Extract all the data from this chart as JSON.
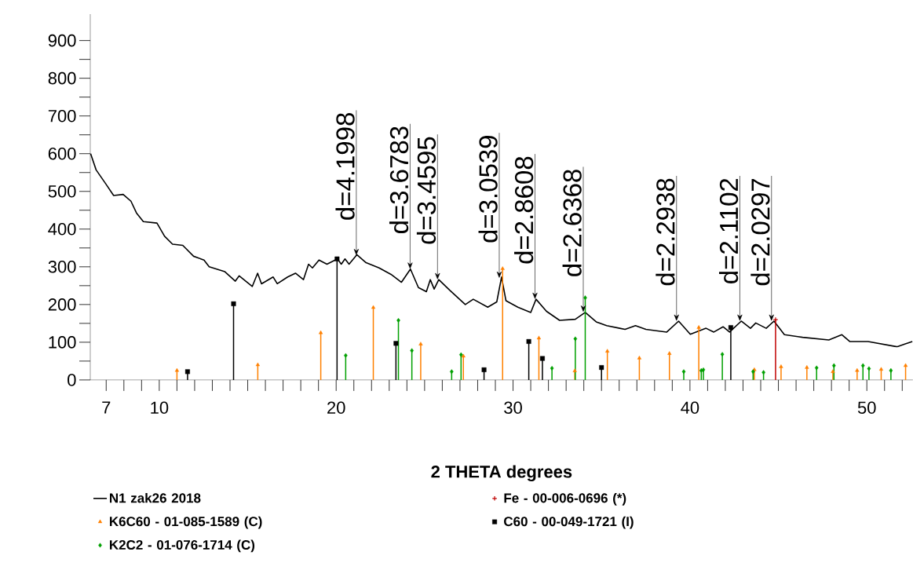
{
  "chart_data": {
    "type": "line",
    "xlabel": "2 THETA degrees",
    "xlim": [
      6.1,
      52.6
    ],
    "xticks": [
      7,
      {
        "value": 8,
        "label": null
      },
      {
        "value": 9,
        "label": null
      },
      10,
      {
        "value": 11,
        "label": null
      },
      {
        "value": 12,
        "label": null
      },
      {
        "value": 13,
        "label": null
      },
      {
        "value": 14,
        "label": null
      },
      {
        "value": 15,
        "label": null
      },
      {
        "value": 16,
        "label": null
      },
      {
        "value": 17,
        "label": null
      },
      {
        "value": 18,
        "label": null
      },
      {
        "value": 19,
        "label": null
      },
      20,
      {
        "value": 21,
        "label": null
      },
      {
        "value": 22,
        "label": null
      },
      {
        "value": 23,
        "label": null
      },
      {
        "value": 24,
        "label": null
      },
      {
        "value": 25,
        "label": null
      },
      {
        "value": 26,
        "label": null
      },
      {
        "value": 27,
        "label": null
      },
      {
        "value": 28,
        "label": null
      },
      {
        "value": 29,
        "label": null
      },
      30,
      {
        "value": 31,
        "label": null
      },
      {
        "value": 32,
        "label": null
      },
      {
        "value": 33,
        "label": null
      },
      {
        "value": 34,
        "label": null
      },
      {
        "value": 35,
        "label": null
      },
      {
        "value": 36,
        "label": null
      },
      {
        "value": 37,
        "label": null
      },
      {
        "value": 38,
        "label": null
      },
      {
        "value": 39,
        "label": null
      },
      40,
      {
        "value": 41,
        "label": null
      },
      {
        "value": 42,
        "label": null
      },
      {
        "value": 43,
        "label": null
      },
      {
        "value": 44,
        "label": null
      },
      {
        "value": 45,
        "label": null
      },
      {
        "value": 46,
        "label": null
      },
      {
        "value": 47,
        "label": null
      },
      {
        "value": 48,
        "label": null
      },
      {
        "value": 49,
        "label": null
      },
      50,
      {
        "value": 51,
        "label": null
      },
      {
        "value": 52,
        "label": null
      }
    ],
    "ylim": [
      0,
      970
    ],
    "yticks": [
      0,
      {
        "value": 50,
        "label": null
      },
      100,
      {
        "value": 150,
        "label": null
      },
      200,
      {
        "value": 250,
        "label": null
      },
      300,
      {
        "value": 350,
        "label": null
      },
      400,
      {
        "value": 450,
        "label": null
      },
      500,
      {
        "value": 550,
        "label": null
      },
      600,
      {
        "value": 650,
        "label": null
      },
      700,
      {
        "value": 750,
        "label": null
      },
      800,
      {
        "value": 850,
        "label": null
      },
      900
    ],
    "legend": "bottom",
    "series": [
      {
        "name": "N1 zak26 2018",
        "color": "#000000",
        "marker": "none",
        "x": [
          6.12,
          6.43,
          6.96,
          7.42,
          7.96,
          8.4,
          8.71,
          9.1,
          9.87,
          10.3,
          10.75,
          11.33,
          11.94,
          12.53,
          12.82,
          13.71,
          14.3,
          14.52,
          15.26,
          15.56,
          15.78,
          16.44,
          16.67,
          17.26,
          17.7,
          18.15,
          18.44,
          18.66,
          19.03,
          19.48,
          20.07,
          20.29,
          20.5,
          20.73,
          21.17,
          21.69,
          22.43,
          23.1,
          23.69,
          24.2,
          24.65,
          25.1,
          25.32,
          25.54,
          25.8,
          26.42,
          27.3,
          27.75,
          28.57,
          29.08,
          29.35,
          29.6,
          30.27,
          31.0,
          31.3,
          31.89,
          32.63,
          33.52,
          34.08,
          34.7,
          35.29,
          36.03,
          36.33,
          36.92,
          37.51,
          38.69,
          39.36,
          40.02,
          40.91,
          41.35,
          41.87,
          42.24,
          42.9,
          43.42,
          43.72,
          44.31,
          44.75,
          45.34,
          46.37,
          47.85,
          48.59,
          49.03,
          50.07,
          51.7,
          52.14,
          52.57
        ],
        "values": [
          600,
          557,
          521,
          489,
          492,
          474,
          443,
          420,
          416,
          381,
          360,
          357,
          328,
          318,
          300,
          287,
          262,
          276,
          248,
          283,
          255,
          273,
          255,
          273,
          283,
          266,
          307,
          297,
          318,
          307,
          321,
          307,
          321,
          307,
          332,
          311,
          297,
          280,
          259,
          294,
          245,
          234,
          266,
          241,
          266,
          238,
          200,
          214,
          193,
          207,
          273,
          210,
          193,
          179,
          214,
          182,
          158,
          161,
          179,
          154,
          144,
          137,
          134,
          144,
          134,
          127,
          156,
          121,
          137,
          127,
          141,
          127,
          156,
          137,
          151,
          137,
          156,
          120,
          113,
          106,
          120,
          102,
          102,
          88,
          95,
          102
        ]
      },
      {
        "name": "Fe - 00-006-0696 (*)",
        "type": "lollipop",
        "color": "#c00000",
        "marker": "cross",
        "x": [
          44.84
        ],
        "values": [
          160
        ]
      },
      {
        "name": "K6C60 - 01-085-1589 (C)",
        "type": "lollipop",
        "color": "#ff8000",
        "marker": "triangle",
        "x": [
          11.0,
          15.57,
          19.13,
          22.1,
          24.78,
          27.19,
          29.41,
          31.46,
          33.49,
          35.33,
          37.14,
          38.84,
          40.5,
          43.64,
          45.15,
          46.61,
          48.08,
          49.45,
          50.81,
          52.19
        ],
        "values": [
          25,
          40,
          125,
          192,
          95,
          63,
          295,
          111,
          24,
          76,
          58,
          70,
          139,
          27,
          35,
          33,
          22,
          25,
          28,
          38
        ]
      },
      {
        "name": "C60 - 00-049-1721 (I)",
        "type": "lollipop",
        "color": "#000000",
        "marker": "square",
        "x": [
          11.6,
          14.2,
          20.05,
          23.38,
          28.36,
          30.89,
          31.66,
          35.0,
          42.31
        ],
        "values": [
          22,
          202,
          321,
          97,
          27,
          102,
          57,
          33,
          139
        ]
      },
      {
        "name": "K2C2 - 01-076-1714 (C)",
        "type": "lollipop",
        "color": "#00a000",
        "marker": "diamond",
        "x": [
          20.54,
          23.52,
          24.28,
          26.53,
          27.06,
          32.2,
          33.52,
          34.08,
          39.65,
          40.64,
          40.76,
          41.83,
          43.57,
          44.16,
          47.16,
          48.14,
          49.78,
          50.12,
          51.36
        ],
        "values": [
          65,
          158,
          78,
          22,
          67,
          31,
          109,
          218,
          22,
          25,
          27,
          68,
          22,
          20,
          32,
          38,
          38,
          30,
          25
        ]
      }
    ],
    "annotations": [
      {
        "text": "d=4.1998",
        "x": 21.14,
        "y": 330
      },
      {
        "text": "d=3.6783",
        "x": 24.18,
        "y": 294
      },
      {
        "text": "d=3.4595",
        "x": 25.73,
        "y": 266
      },
      {
        "text": "d=3.0539",
        "x": 29.22,
        "y": 270
      },
      {
        "text": "d=2.8608",
        "x": 31.24,
        "y": 214
      },
      {
        "text": "d=2.6368",
        "x": 33.97,
        "y": 180
      },
      {
        "text": "d=2.2938",
        "x": 39.24,
        "y": 156
      },
      {
        "text": "d=2.1102",
        "x": 42.82,
        "y": 156
      },
      {
        "text": "d=2.0297",
        "x": 44.61,
        "y": 156
      }
    ]
  }
}
